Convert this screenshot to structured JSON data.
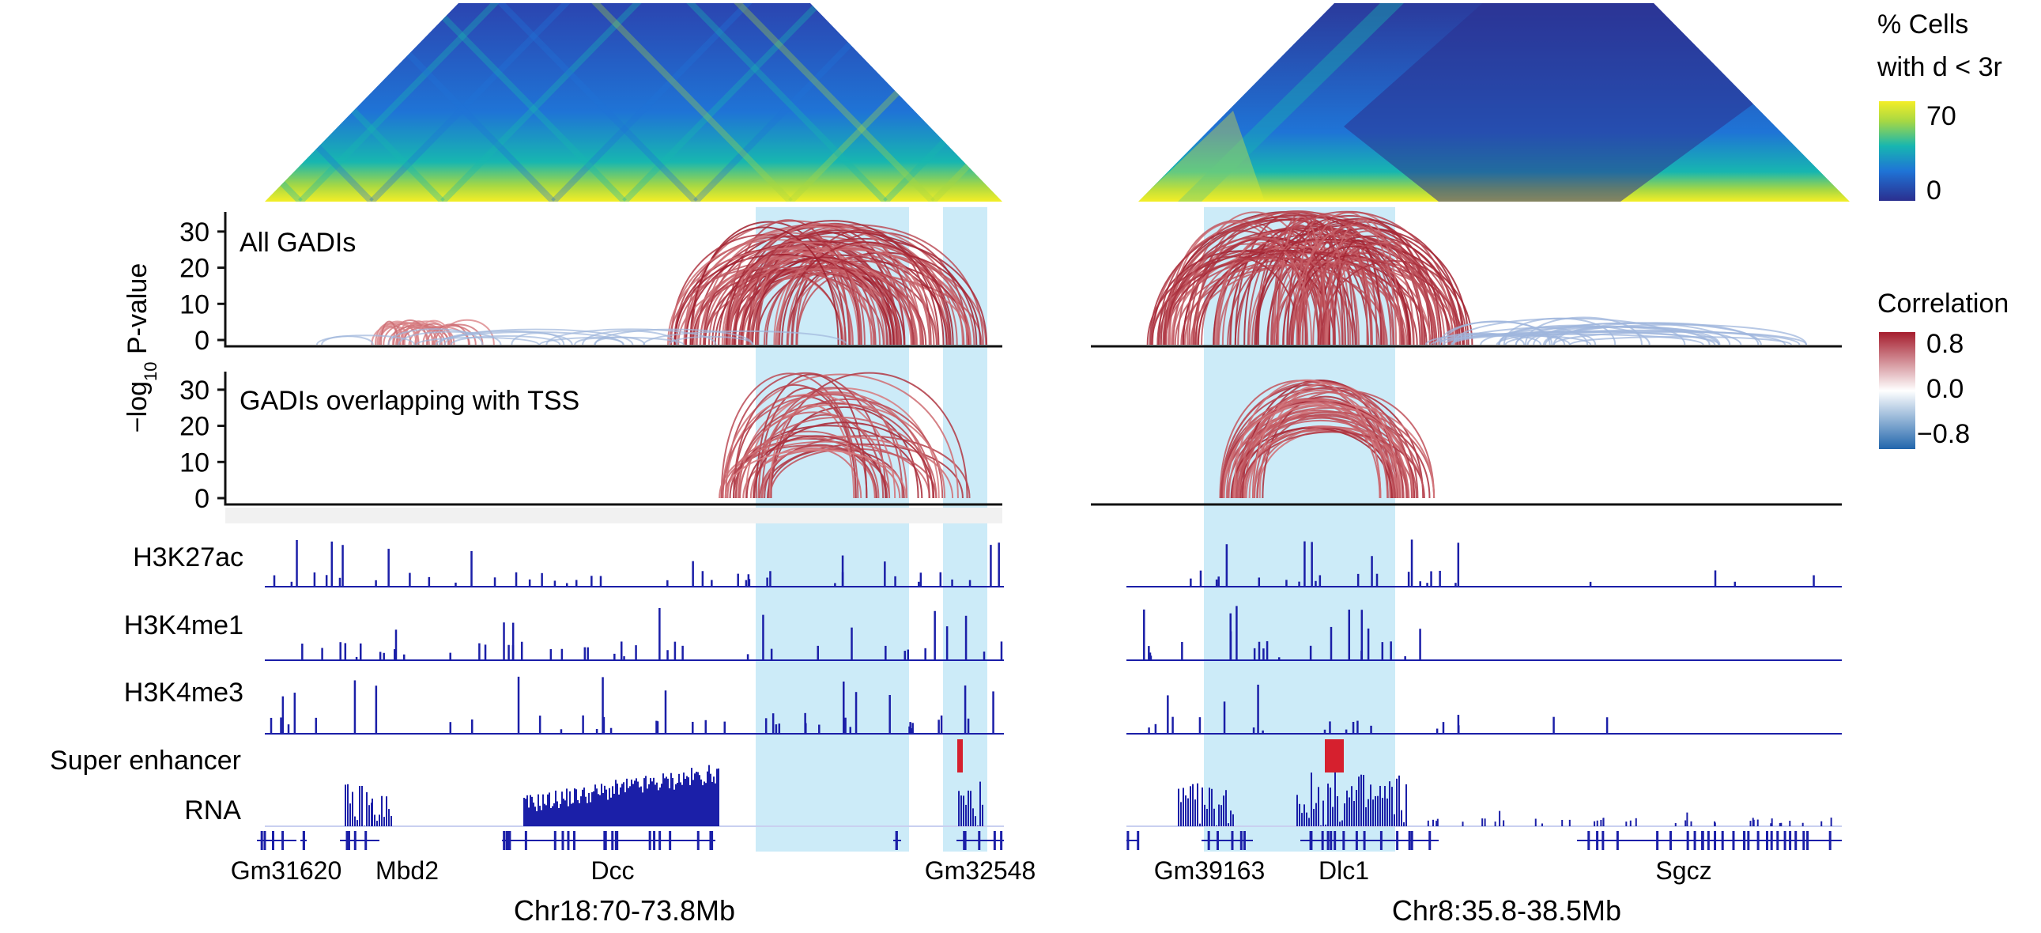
{
  "chart_data": {
    "type": "genome-browser",
    "heatmap_legend": {
      "title_line1": "% Cells",
      "title_line2": "with d < 3r",
      "max_label": "70",
      "min_label": "0",
      "colors": [
        "#2b2f8f",
        "#1f74d6",
        "#17b6b0",
        "#a7d843",
        "#f4ee27"
      ]
    },
    "correlation_legend": {
      "title": "Correlation",
      "ticks": [
        "0.8",
        "0.0",
        "−0.8"
      ],
      "colors": [
        "#a51d2d",
        "#ffffff",
        "#2166ac"
      ]
    },
    "yaxis": {
      "label_prefix": "−log",
      "label_sub": "10",
      "label_suffix": " P-value",
      "ticks": [
        "0",
        "10",
        "20",
        "30"
      ],
      "range": [
        0,
        35
      ]
    },
    "arc_panels": {
      "all_title": "All GADIs",
      "tss_title": "GADIs overlapping with TSS"
    },
    "track_labels": [
      "H3K27ac",
      "H3K4me1",
      "H3K4me3",
      "Super enhancer",
      "RNA"
    ],
    "regions": [
      {
        "coord_label": "Chr18:70-73.8Mb",
        "genes": [
          "Gm31620",
          "Mbd2",
          "Dcc",
          "Gm32548"
        ]
      },
      {
        "coord_label": "Chr8:35.8-38.5Mb",
        "genes": [
          "Gm39163",
          "Dlc1",
          "Sgcz"
        ]
      }
    ]
  }
}
